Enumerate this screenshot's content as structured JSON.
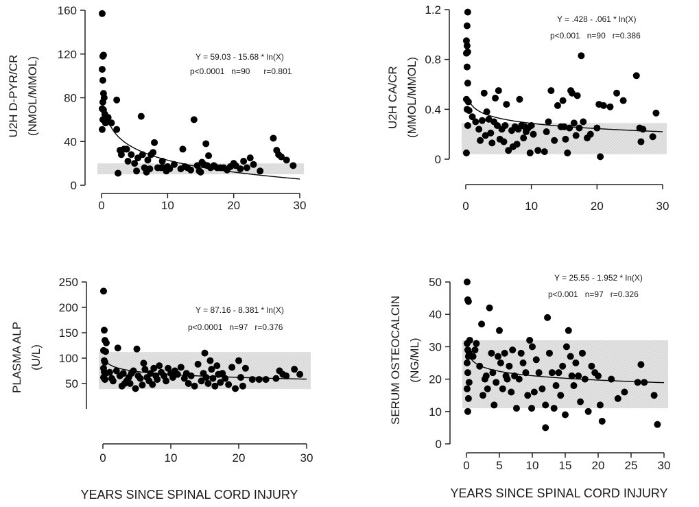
{
  "x_title_left": "YEARS SINCE SPINAL CORD INJURY",
  "x_title_right": "YEARS SINCE SPINAL CORD INJURY",
  "colors": {
    "points": "#000000",
    "band": "#e4e4e4",
    "curve": "#000000",
    "axes": "#222222"
  },
  "chart_data": [
    {
      "id": "dpyr",
      "type": "scatter",
      "ylabel": [
        "U2H D-PYR/CR",
        "(NMOL/MMOL)"
      ],
      "xlim": [
        0,
        30
      ],
      "ylim": [
        0,
        160
      ],
      "xticks": [
        0,
        10,
        20,
        30
      ],
      "yticks": [
        0,
        40,
        80,
        120,
        160
      ],
      "annotation": [
        "Y = 59.03 - 15.68 * ln(X)",
        "p<0.0001   n=90      r=0.801"
      ],
      "fit": {
        "a": 59.03,
        "b": -15.68
      },
      "normal_range": [
        10,
        20
      ],
      "points": [
        [
          0.1,
          157
        ],
        [
          0.2,
          118
        ],
        [
          0.3,
          119
        ],
        [
          0.1,
          106
        ],
        [
          0.2,
          96
        ],
        [
          0.3,
          84
        ],
        [
          0.4,
          80
        ],
        [
          0.2,
          76
        ],
        [
          0.1,
          70
        ],
        [
          0.3,
          69
        ],
        [
          0.2,
          60
        ],
        [
          0.5,
          65
        ],
        [
          0.6,
          57
        ],
        [
          0.1,
          51
        ],
        [
          1,
          62
        ],
        [
          1.5,
          57
        ],
        [
          2.3,
          78
        ],
        [
          2.3,
          51
        ],
        [
          2.8,
          32
        ],
        [
          3,
          28
        ],
        [
          2.5,
          11
        ],
        [
          3.4,
          33
        ],
        [
          3.8,
          33
        ],
        [
          4,
          22
        ],
        [
          4.5,
          28
        ],
        [
          5,
          20
        ],
        [
          5.3,
          13
        ],
        [
          5.5,
          25
        ],
        [
          6,
          63
        ],
        [
          6.2,
          28
        ],
        [
          6.5,
          16
        ],
        [
          6.8,
          12
        ],
        [
          7,
          23
        ],
        [
          7.3,
          15
        ],
        [
          7.5,
          28
        ],
        [
          7.8,
          30
        ],
        [
          8,
          39
        ],
        [
          8.5,
          16
        ],
        [
          9,
          16
        ],
        [
          9.2,
          22
        ],
        [
          9.5,
          16
        ],
        [
          9.8,
          13
        ],
        [
          10,
          17
        ],
        [
          10.3,
          15
        ],
        [
          11,
          19
        ],
        [
          12,
          15
        ],
        [
          12.3,
          33
        ],
        [
          12.6,
          17
        ],
        [
          13,
          16
        ],
        [
          13.5,
          14
        ],
        [
          14,
          60
        ],
        [
          14.5,
          18
        ],
        [
          14.8,
          13
        ],
        [
          15,
          12
        ],
        [
          15.2,
          21
        ],
        [
          15.5,
          19
        ],
        [
          15.8,
          38
        ],
        [
          16,
          18
        ],
        [
          16.2,
          27
        ],
        [
          16.5,
          16
        ],
        [
          17,
          18
        ],
        [
          17.5,
          16
        ],
        [
          18,
          16
        ],
        [
          18.5,
          16
        ],
        [
          19,
          14
        ],
        [
          19.5,
          17
        ],
        [
          20,
          20
        ],
        [
          20.3,
          18
        ],
        [
          21,
          15
        ],
        [
          21.5,
          22
        ],
        [
          22,
          16
        ],
        [
          22.5,
          25
        ],
        [
          23,
          19
        ],
        [
          24,
          13
        ],
        [
          26,
          43
        ],
        [
          26.5,
          32
        ],
        [
          26.8,
          28
        ],
        [
          27.2,
          26
        ],
        [
          28,
          23
        ],
        [
          29,
          18
        ]
      ]
    },
    {
      "id": "ca",
      "type": "scatter",
      "ylabel": [
        "U2H CA/CR",
        "(MMOL/MMOL)"
      ],
      "xlim": [
        0,
        30
      ],
      "ylim": [
        0,
        1.2
      ],
      "xticks": [
        0,
        10,
        20,
        30
      ],
      "yticks": [
        0,
        0.4,
        0.8,
        1.2
      ],
      "ytick_labels": [
        "0",
        "0.4",
        "0.8",
        "1.2"
      ],
      "annotation": [
        "Y = .428 - .061 * ln(X)",
        "p<0.001   n=90   r=0.386"
      ],
      "fit": {
        "a": 0.428,
        "b": -0.061
      },
      "normal_range": [
        0.04,
        0.29
      ],
      "points": [
        [
          0.3,
          1.18
        ],
        [
          0.2,
          1.07
        ],
        [
          0.1,
          0.95
        ],
        [
          0.2,
          0.91
        ],
        [
          0.1,
          0.85
        ],
        [
          0.3,
          0.86
        ],
        [
          0.2,
          0.74
        ],
        [
          0.3,
          0.61
        ],
        [
          0.1,
          0.48
        ],
        [
          0.4,
          0.46
        ],
        [
          0.2,
          0.4
        ],
        [
          0.5,
          0.39
        ],
        [
          0.3,
          0.27
        ],
        [
          0.1,
          0.05
        ],
        [
          1,
          0.34
        ],
        [
          1.5,
          0.3
        ],
        [
          2,
          0.24
        ],
        [
          2.2,
          0.15
        ],
        [
          2.5,
          0.31
        ],
        [
          2.8,
          0.53
        ],
        [
          3,
          0.19
        ],
        [
          3.2,
          0.38
        ],
        [
          3.5,
          0.32
        ],
        [
          3.8,
          0.21
        ],
        [
          4,
          0.13
        ],
        [
          4.3,
          0.3
        ],
        [
          4.5,
          0.49
        ],
        [
          4.8,
          0.27
        ],
        [
          5,
          0.55
        ],
        [
          5.2,
          0.16
        ],
        [
          5.5,
          0.24
        ],
        [
          5.8,
          0.14
        ],
        [
          6,
          0.27
        ],
        [
          6.2,
          0.44
        ],
        [
          6.5,
          0.07
        ],
        [
          7,
          0.23
        ],
        [
          7.2,
          0.1
        ],
        [
          7.5,
          0.26
        ],
        [
          7.8,
          0.12
        ],
        [
          8,
          0.24
        ],
        [
          8.2,
          0.48
        ],
        [
          8.5,
          0.27
        ],
        [
          8.8,
          0.17
        ],
        [
          9,
          0.26
        ],
        [
          9.2,
          0.22
        ],
        [
          9.5,
          0.25
        ],
        [
          9.8,
          0.05
        ],
        [
          10,
          0.27
        ],
        [
          10.3,
          0.2
        ],
        [
          11,
          0.07
        ],
        [
          12,
          0.06
        ],
        [
          12.3,
          0.22
        ],
        [
          12.6,
          0.3
        ],
        [
          13,
          0.55
        ],
        [
          13.5,
          0.15
        ],
        [
          14,
          0.43
        ],
        [
          14.5,
          0.26
        ],
        [
          14.8,
          0.47
        ],
        [
          15,
          0.26
        ],
        [
          15.2,
          0.16
        ],
        [
          15.5,
          0.05
        ],
        [
          15.8,
          0.25
        ],
        [
          16,
          0.55
        ],
        [
          16.2,
          0.53
        ],
        [
          16.5,
          0.29
        ],
        [
          16.8,
          0.19
        ],
        [
          17,
          0.51
        ],
        [
          17.3,
          0.25
        ],
        [
          17.6,
          0.83
        ],
        [
          17.9,
          0.3
        ],
        [
          18.5,
          0.17
        ],
        [
          19,
          0.2
        ],
        [
          20,
          0.25
        ],
        [
          20.3,
          0.44
        ],
        [
          21,
          0.43
        ],
        [
          20.5,
          0.02
        ],
        [
          22,
          0.42
        ],
        [
          23,
          0.53
        ],
        [
          24,
          0.47
        ],
        [
          26,
          0.67
        ],
        [
          26.5,
          0.25
        ],
        [
          26.7,
          0.14
        ],
        [
          27,
          0.24
        ],
        [
          28.5,
          0.18
        ],
        [
          29,
          0.37
        ]
      ]
    },
    {
      "id": "alp",
      "type": "scatter",
      "ylabel": [
        "PLASMA ALP",
        "(U/L)"
      ],
      "xlim": [
        0,
        30
      ],
      "ylim": [
        0,
        250
      ],
      "xticks": [
        0,
        10,
        20,
        30
      ],
      "yticks": [
        50,
        100,
        150,
        200,
        250
      ],
      "annotation": [
        "Y = 87.16 - 8.381 * ln(X)",
        "p<0.0001   n=97   r=0.376"
      ],
      "fit": {
        "a": 87.16,
        "b": -8.381
      },
      "normal_range": [
        39,
        112
      ],
      "points": [
        [
          0.1,
          232
        ],
        [
          0.2,
          155
        ],
        [
          0.3,
          135
        ],
        [
          0.5,
          130
        ],
        [
          0.1,
          115
        ],
        [
          0.4,
          113
        ],
        [
          0.2,
          95
        ],
        [
          0.3,
          92
        ],
        [
          0.1,
          80
        ],
        [
          0.2,
          73
        ],
        [
          0.4,
          70
        ],
        [
          0.1,
          62
        ],
        [
          0.3,
          58
        ],
        [
          1,
          72
        ],
        [
          1.3,
          60
        ],
        [
          1.5,
          55
        ],
        [
          2,
          75
        ],
        [
          2.2,
          120
        ],
        [
          2.5,
          65
        ],
        [
          2.8,
          45
        ],
        [
          3,
          70
        ],
        [
          3.2,
          50
        ],
        [
          3.5,
          55
        ],
        [
          3.8,
          62
        ],
        [
          4,
          50
        ],
        [
          4.2,
          70
        ],
        [
          4.5,
          75
        ],
        [
          4.8,
          40
        ],
        [
          5,
          118
        ],
        [
          5.2,
          65
        ],
        [
          5.5,
          60
        ],
        [
          5.8,
          47
        ],
        [
          6,
          90
        ],
        [
          6.2,
          78
        ],
        [
          6.5,
          62
        ],
        [
          6.8,
          55
        ],
        [
          7,
          70
        ],
        [
          7.3,
          48
        ],
        [
          7.5,
          80
        ],
        [
          7.8,
          65
        ],
        [
          8,
          58
        ],
        [
          8.3,
          85
        ],
        [
          8.6,
          72
        ],
        [
          9,
          65
        ],
        [
          9.3,
          55
        ],
        [
          9.6,
          80
        ],
        [
          10,
          70
        ],
        [
          10.3,
          62
        ],
        [
          10.6,
          75
        ],
        [
          11,
          68
        ],
        [
          11.5,
          82
        ],
        [
          12,
          60
        ],
        [
          12.3,
          70
        ],
        [
          12.6,
          50
        ],
        [
          13,
          65
        ],
        [
          13.5,
          45
        ],
        [
          14,
          88
        ],
        [
          14.5,
          55
        ],
        [
          14.8,
          70
        ],
        [
          15,
          110
        ],
        [
          15.2,
          62
        ],
        [
          15.5,
          50
        ],
        [
          15.8,
          95
        ],
        [
          16,
          78
        ],
        [
          16.2,
          60
        ],
        [
          16.5,
          45
        ],
        [
          16.8,
          85
        ],
        [
          17,
          68
        ],
        [
          17.3,
          52
        ],
        [
          17.6,
          70
        ],
        [
          18,
          60
        ],
        [
          18.5,
          48
        ],
        [
          19,
          82
        ],
        [
          19.5,
          40
        ],
        [
          20,
          95
        ],
        [
          20.3,
          62
        ],
        [
          20.6,
          45
        ],
        [
          21,
          80
        ],
        [
          22,
          58
        ],
        [
          23,
          58
        ],
        [
          24,
          58
        ],
        [
          25.5,
          60
        ],
        [
          26,
          75
        ],
        [
          26.5,
          68
        ],
        [
          27,
          65
        ],
        [
          28.2,
          78
        ],
        [
          29,
          68
        ]
      ]
    },
    {
      "id": "osteo",
      "type": "scatter",
      "ylabel": [
        "SERUM OSTEOCALCIN",
        "(NG/ML)"
      ],
      "xlim": [
        0,
        30
      ],
      "ylim": [
        0,
        50
      ],
      "xticks": [
        0,
        5,
        10,
        15,
        20,
        25,
        30
      ],
      "yticks": [
        0,
        10,
        20,
        30,
        40,
        50
      ],
      "annotation": [
        "Y = 25.55 - 1.952 * ln(X)",
        "p<0.001   n=97   r=0.326"
      ],
      "fit": {
        "a": 25.55,
        "b": -1.952
      },
      "normal_range": [
        11,
        32
      ],
      "points": [
        [
          0.1,
          50
        ],
        [
          0.2,
          44.5
        ],
        [
          0.3,
          44
        ],
        [
          0.1,
          31
        ],
        [
          0.2,
          29
        ],
        [
          0.4,
          28
        ],
        [
          0.5,
          32
        ],
        [
          0.3,
          27
        ],
        [
          0.1,
          25
        ],
        [
          0.2,
          22
        ],
        [
          0.4,
          19
        ],
        [
          0.1,
          17
        ],
        [
          0.3,
          14
        ],
        [
          0.2,
          10
        ],
        [
          1,
          27
        ],
        [
          1.3,
          29
        ],
        [
          1.5,
          31
        ],
        [
          2,
          24
        ],
        [
          2.3,
          37
        ],
        [
          2.5,
          15
        ],
        [
          2.8,
          20
        ],
        [
          3,
          21
        ],
        [
          3.2,
          17
        ],
        [
          3.5,
          42
        ],
        [
          3.8,
          28
        ],
        [
          4,
          22
        ],
        [
          4.2,
          12
        ],
        [
          4.5,
          19
        ],
        [
          4.8,
          27
        ],
        [
          5,
          35
        ],
        [
          5.2,
          25
        ],
        [
          5.5,
          17
        ],
        [
          5.8,
          28
        ],
        [
          6,
          21
        ],
        [
          6.2,
          20
        ],
        [
          6.5,
          24
        ],
        [
          6.8,
          16
        ],
        [
          7,
          29
        ],
        [
          7.3,
          21
        ],
        [
          7.6,
          11
        ],
        [
          8,
          20
        ],
        [
          8.3,
          28
        ],
        [
          8.6,
          25
        ],
        [
          9,
          22
        ],
        [
          9.3,
          15
        ],
        [
          9.6,
          32
        ],
        [
          9.9,
          11
        ],
        [
          10,
          30
        ],
        [
          10.3,
          16
        ],
        [
          10.6,
          26
        ],
        [
          11,
          22
        ],
        [
          11.5,
          17
        ],
        [
          12,
          12
        ],
        [
          12.3,
          39
        ],
        [
          12.6,
          28
        ],
        [
          13,
          22
        ],
        [
          13.3,
          11
        ],
        [
          13.6,
          18
        ],
        [
          14,
          22
        ],
        [
          14.3,
          15
        ],
        [
          14.6,
          24
        ],
        [
          15,
          9
        ],
        [
          15.2,
          30
        ],
        [
          15.5,
          35
        ],
        [
          15.8,
          27
        ],
        [
          16,
          21
        ],
        [
          16.3,
          18
        ],
        [
          16.6,
          25
        ],
        [
          17,
          21
        ],
        [
          17.3,
          13
        ],
        [
          17.6,
          28
        ],
        [
          18,
          20
        ],
        [
          18.5,
          10
        ],
        [
          19,
          24
        ],
        [
          19.5,
          22
        ],
        [
          20,
          21
        ],
        [
          20.3,
          12
        ],
        [
          20.6,
          7
        ],
        [
          22,
          20
        ],
        [
          23,
          14
        ],
        [
          24,
          16
        ],
        [
          26,
          19
        ],
        [
          26.5,
          24.5
        ],
        [
          27,
          19
        ],
        [
          28.5,
          15
        ],
        [
          29,
          6
        ],
        [
          12,
          5
        ]
      ]
    }
  ]
}
